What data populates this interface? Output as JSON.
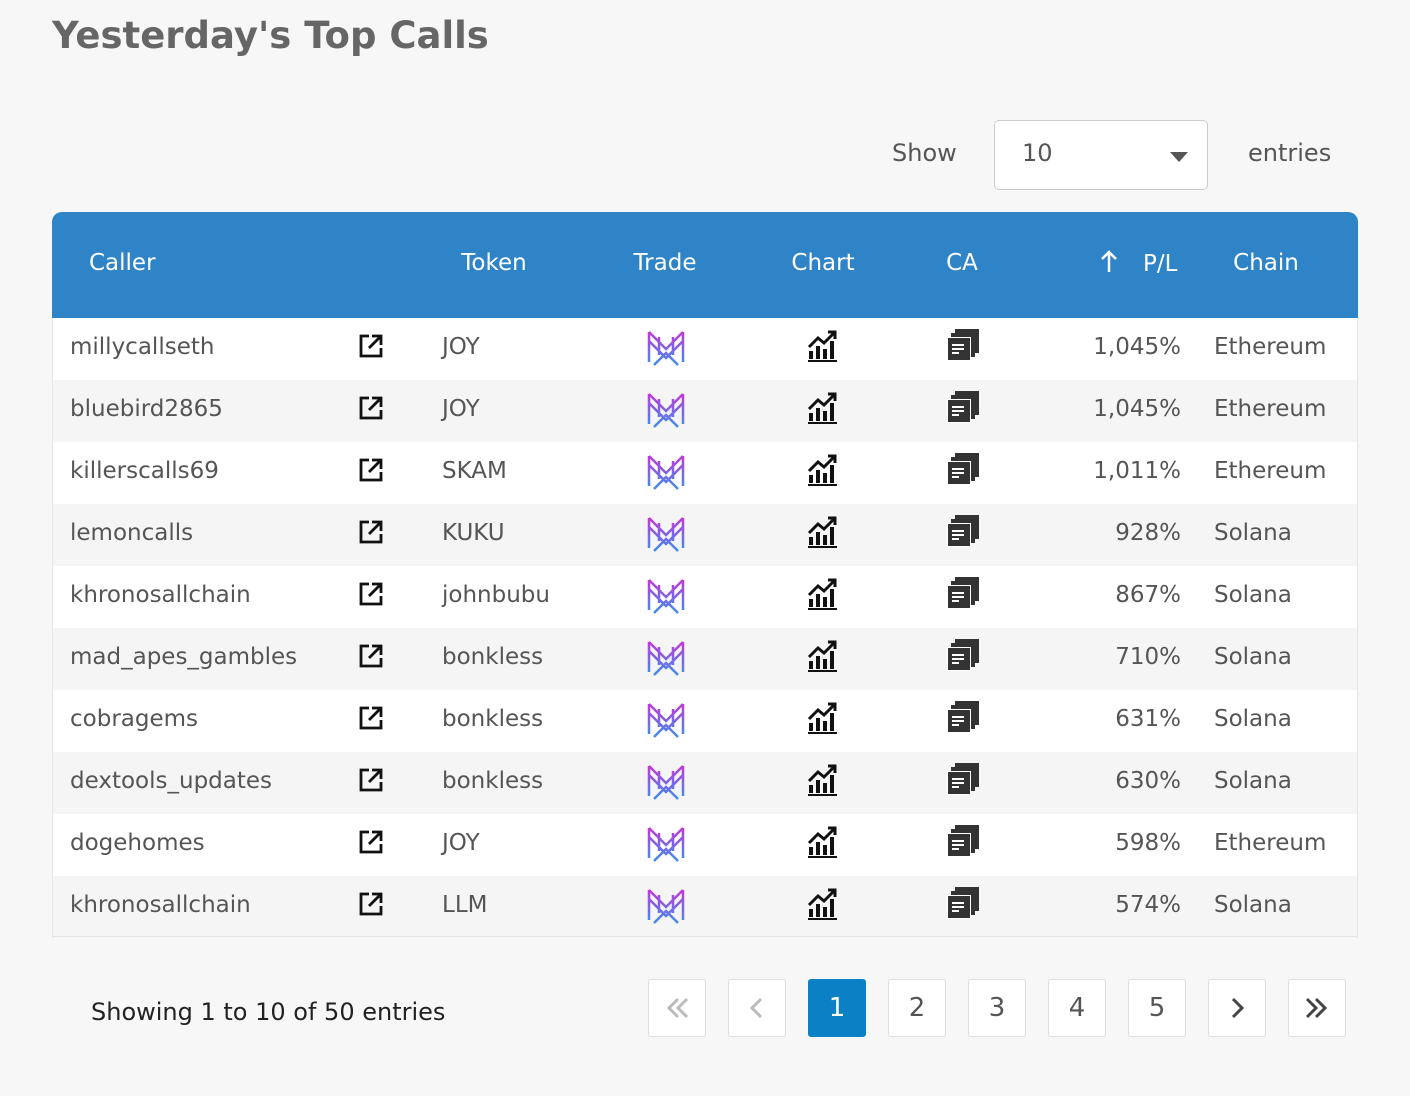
{
  "header": {
    "title": "Yesterday's Top Calls"
  },
  "controls": {
    "show_label": "Show",
    "page_size": 10,
    "entries_label": "entries"
  },
  "table": {
    "columns": [
      "Caller",
      "Token",
      "Trade",
      "Chart",
      "CA",
      "P/L",
      "Chain"
    ],
    "rows": [
      [
        "millycallseth",
        "JOY",
        "1,045%",
        "Ethereum"
      ],
      [
        "bluebird2865",
        "JOY",
        "1,045%",
        "Ethereum"
      ],
      [
        "killerscalls69",
        "SKAM",
        "1,011%",
        "Ethereum"
      ],
      [
        "lemoncalls",
        "KUKU",
        "928%",
        "Solana"
      ],
      [
        "khronosallchain",
        "johnbubu",
        "867%",
        "Solana"
      ],
      [
        "mad_apes_gambles",
        "bonkless",
        "710%",
        "Solana"
      ],
      [
        "cobragems",
        "bonkless",
        "631%",
        "Solana"
      ],
      [
        "dextools_updates",
        "bonkless",
        "630%",
        "Solana"
      ],
      [
        "dogehomes",
        "JOY",
        "598%",
        "Ethereum"
      ],
      [
        "khronosallchain",
        "LLM",
        "574%",
        "Solana"
      ]
    ]
  },
  "footer": {
    "info": "Showing 1 to 10 of 50 entries"
  },
  "pagination": {
    "pages": [
      1,
      2,
      3,
      4,
      5
    ],
    "active": 1
  }
}
